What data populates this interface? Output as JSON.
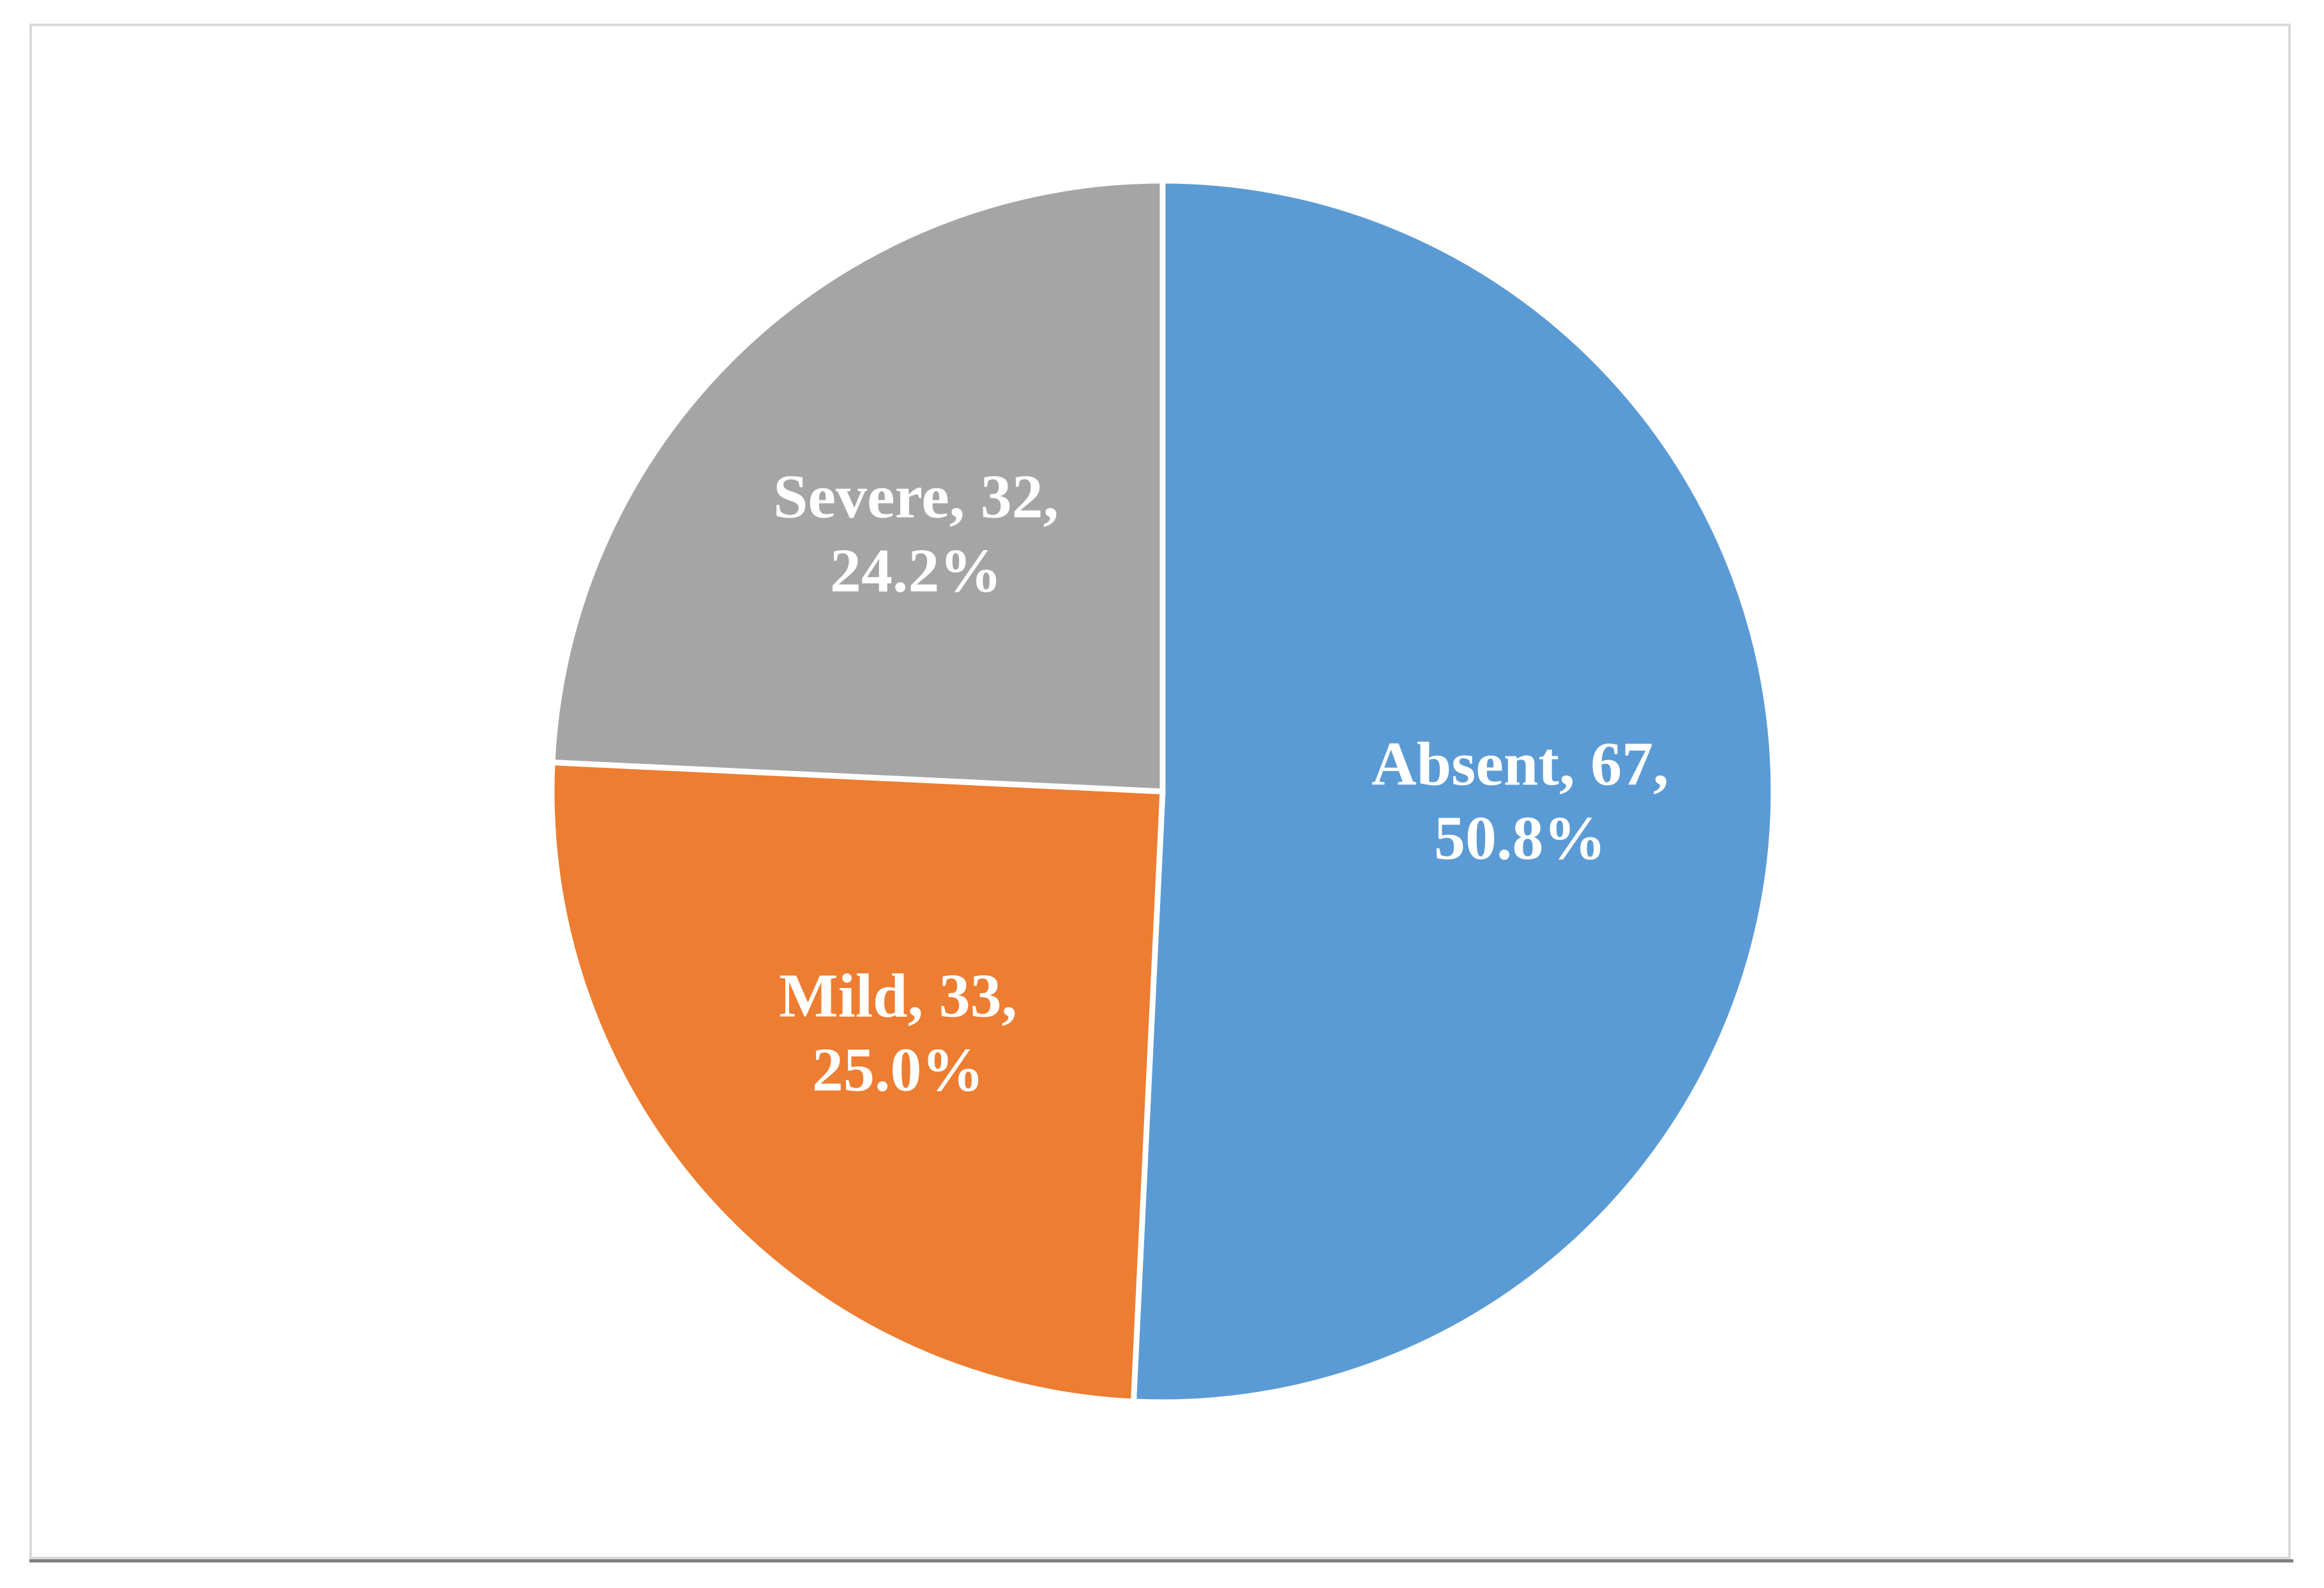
{
  "chart_data": {
    "type": "pie",
    "title": "",
    "slices": [
      {
        "category": "Absent",
        "value": 67,
        "percent": "50.8%",
        "color": "#5b9bd5",
        "label_line1": "Absent, 67,",
        "label_line2": "50.8%"
      },
      {
        "category": "Mild",
        "value": 33,
        "percent": "25.0%",
        "color": "#ed7d31",
        "label_line1": "Mild, 33,",
        "label_line2": "25.0%"
      },
      {
        "category": "Severe",
        "value": 32,
        "percent": "24.2%",
        "color": "#a5a5a5",
        "label_line1": "Severe, 32,",
        "label_line2": "24.2%"
      }
    ],
    "start_angle_deg": 0,
    "direction": "clockwise",
    "legend": "none",
    "data_labels": "inside"
  }
}
